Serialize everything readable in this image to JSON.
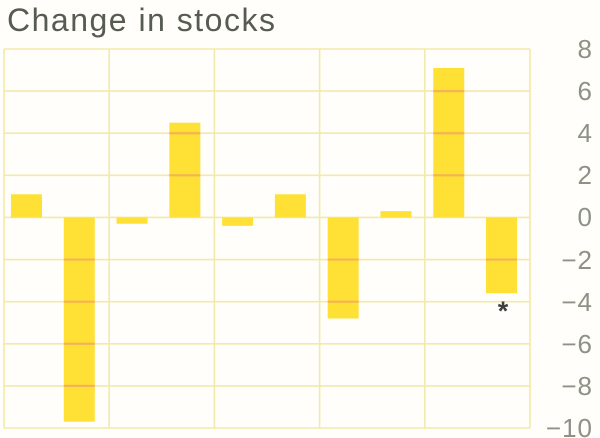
{
  "chart_data": {
    "type": "bar",
    "title": "Change in stocks",
    "n_bars": 10,
    "bars_per_group": 2,
    "groups": 5,
    "values": [
      1.1,
      -9.7,
      -0.3,
      4.5,
      -0.4,
      1.1,
      -4.8,
      0.3,
      7.1,
      -3.6
    ],
    "x_axis_labels": "none",
    "y_axis_side": "right",
    "ylim": [
      -10,
      8
    ],
    "yticks": [
      8,
      6,
      4,
      2,
      0,
      -2,
      -4,
      -6,
      -8,
      -10
    ],
    "ytick_labels": [
      "8",
      "6",
      "4",
      "2",
      "0",
      "−2",
      "−4",
      "−6",
      "−8",
      "−10"
    ],
    "grid": true,
    "legend": "none",
    "annotation": {
      "text": "*",
      "bar_index": 9
    }
  },
  "colors": {
    "background": "#fffefa",
    "bar": "#ffe135",
    "grid": "#f3e9a8",
    "grid_over_bar": "#f3a85c",
    "title_text": "#575c52",
    "axis_text": "#8d9285",
    "annotation_text": "#3c403c"
  }
}
